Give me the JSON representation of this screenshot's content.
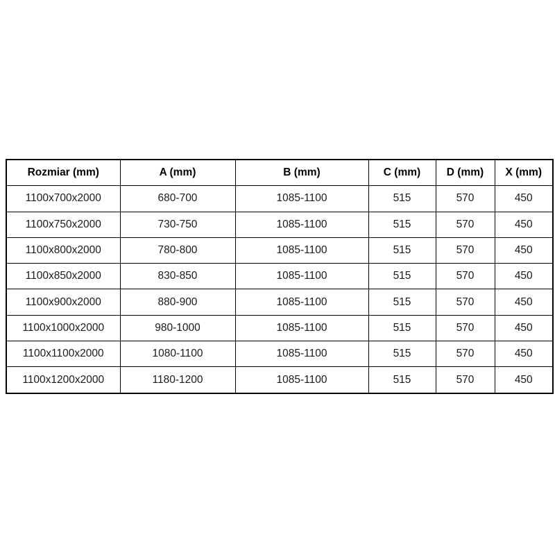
{
  "page": {
    "background_color": "#ffffff",
    "table_border_color": "#000000",
    "text_color": "#1a1a1a"
  },
  "chart_data": {
    "type": "table",
    "columns": [
      "Rozmiar (mm)",
      "A (mm)",
      "B (mm)",
      "C (mm)",
      "D (mm)",
      "X (mm)"
    ],
    "rows": [
      [
        "1100x700x2000",
        "680-700",
        "1085-1100",
        "515",
        "570",
        "450"
      ],
      [
        "1100x750x2000",
        "730-750",
        "1085-1100",
        "515",
        "570",
        "450"
      ],
      [
        "1100x800x2000",
        "780-800",
        "1085-1100",
        "515",
        "570",
        "450"
      ],
      [
        "1100x850x2000",
        "830-850",
        "1085-1100",
        "515",
        "570",
        "450"
      ],
      [
        "1100x900x2000",
        "880-900",
        "1085-1100",
        "515",
        "570",
        "450"
      ],
      [
        "1100x1000x2000",
        "980-1000",
        "1085-1100",
        "515",
        "570",
        "450"
      ],
      [
        "1100x1100x2000",
        "1080-1100",
        "1085-1100",
        "515",
        "570",
        "450"
      ],
      [
        "1100x1200x2000",
        "1180-1200",
        "1085-1100",
        "515",
        "570",
        "450"
      ]
    ]
  }
}
